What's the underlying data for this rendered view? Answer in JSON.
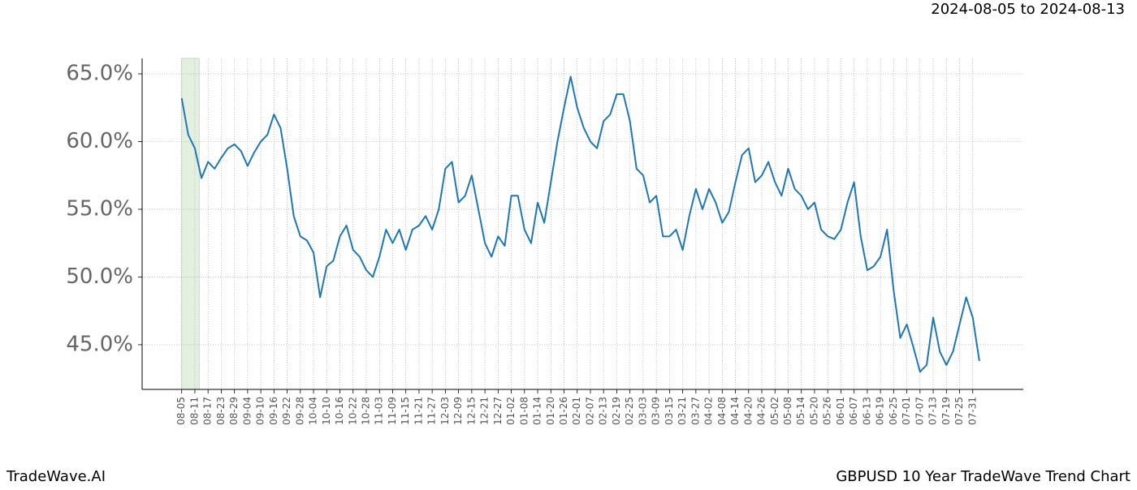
{
  "chart_data": {
    "type": "line",
    "subtitle": "2024-08-05 to 2024-08-13",
    "footer_left": "TradeWave.AI",
    "footer_right": "GBPUSD 10 Year TradeWave Trend Chart",
    "highlight": [
      "08-05",
      "08-13"
    ],
    "highlight_color": "#d8ead3",
    "grid": true,
    "xlim": [
      "07-18",
      "08-23"
    ],
    "ylim": [
      41.7,
      66.14
    ],
    "yticks": [
      {
        "value": 45,
        "label": "45.0%"
      },
      {
        "value": 50,
        "label": "50.0%"
      },
      {
        "value": 55,
        "label": "55.0%"
      },
      {
        "value": 60,
        "label": "60.0%"
      },
      {
        "value": 65,
        "label": "65.0%"
      }
    ],
    "xticks": [
      "08-05",
      "08-11",
      "08-17",
      "08-23",
      "08-29",
      "09-04",
      "09-10",
      "09-16",
      "09-22",
      "09-28",
      "10-04",
      "10-10",
      "10-16",
      "10-22",
      "10-28",
      "11-03",
      "11-09",
      "11-15",
      "11-21",
      "11-27",
      "12-03",
      "12-09",
      "12-15",
      "12-21",
      "12-27",
      "01-02",
      "01-08",
      "01-14",
      "01-20",
      "01-26",
      "02-01",
      "02-07",
      "02-13",
      "02-19",
      "02-25",
      "03-03",
      "03-09",
      "03-15",
      "03-21",
      "03-27",
      "04-02",
      "04-08",
      "04-14",
      "04-20",
      "04-26",
      "05-02",
      "05-08",
      "05-14",
      "05-20",
      "05-26",
      "06-01",
      "06-07",
      "06-13",
      "06-19",
      "06-25",
      "07-01",
      "07-07",
      "07-13",
      "07-19",
      "07-25",
      "07-31"
    ],
    "x": [
      "08-05",
      "08-08",
      "08-11",
      "08-14",
      "08-17",
      "08-20",
      "08-23",
      "08-26",
      "08-29",
      "09-01",
      "09-04",
      "09-07",
      "09-10",
      "09-13",
      "09-16",
      "09-19",
      "09-22",
      "09-25",
      "09-28",
      "10-01",
      "10-04",
      "10-07",
      "10-10",
      "10-13",
      "10-16",
      "10-19",
      "10-22",
      "10-25",
      "10-28",
      "10-31",
      "11-03",
      "11-06",
      "11-09",
      "11-12",
      "11-15",
      "11-18",
      "11-21",
      "11-24",
      "11-27",
      "11-30",
      "12-03",
      "12-06",
      "12-09",
      "12-12",
      "12-15",
      "12-18",
      "12-21",
      "12-24",
      "12-27",
      "12-30",
      "01-02",
      "01-05",
      "01-08",
      "01-11",
      "01-14",
      "01-17",
      "01-20",
      "01-23",
      "01-26",
      "01-29",
      "02-01",
      "02-04",
      "02-07",
      "02-10",
      "02-13",
      "02-16",
      "02-19",
      "02-22",
      "02-25",
      "02-28",
      "03-03",
      "03-06",
      "03-09",
      "03-12",
      "03-15",
      "03-18",
      "03-21",
      "03-24",
      "03-27",
      "03-30",
      "04-02",
      "04-05",
      "04-08",
      "04-11",
      "04-14",
      "04-17",
      "04-20",
      "04-23",
      "04-26",
      "04-29",
      "05-02",
      "05-05",
      "05-08",
      "05-11",
      "05-14",
      "05-17",
      "05-20",
      "05-23",
      "05-26",
      "05-29",
      "06-01",
      "06-04",
      "06-07",
      "06-10",
      "06-13",
      "06-16",
      "06-19",
      "06-22",
      "06-25",
      "06-28",
      "07-01",
      "07-04",
      "07-07",
      "07-10",
      "07-13",
      "07-16",
      "07-19",
      "07-22",
      "07-25",
      "07-28",
      "07-31",
      "08-03"
    ],
    "series": [
      {
        "color": "#1f77b4",
        "values": [
          63.2,
          60.5,
          59.5,
          57.3,
          58.5,
          58.0,
          58.8,
          59.5,
          59.8,
          59.3,
          58.2,
          59.2,
          60.0,
          60.5,
          62.0,
          61.0,
          58.0,
          54.5,
          53.0,
          52.7,
          51.8,
          48.5,
          50.8,
          51.2,
          53.0,
          53.8,
          52.0,
          51.5,
          50.5,
          50.0,
          51.5,
          53.5,
          52.5,
          53.5,
          52.0,
          53.5,
          53.8,
          54.5,
          53.5,
          55.0,
          58.0,
          58.5,
          55.5,
          56.0,
          57.5,
          55.0,
          52.5,
          51.5,
          53.0,
          52.3,
          56.0,
          56.0,
          53.5,
          52.5,
          55.5,
          54.0,
          57.0,
          60.0,
          62.5,
          64.8,
          62.5,
          61.0,
          60.0,
          59.5,
          61.5,
          62.0,
          63.5,
          63.5,
          61.5,
          58.0,
          57.5,
          55.5,
          56.0,
          53.0,
          53.0,
          53.5,
          52.0,
          54.5,
          56.5,
          55.0,
          56.5,
          55.5,
          54.0,
          54.8,
          57.0,
          59.0,
          59.5,
          57.0,
          57.5,
          58.5,
          57.0,
          56.0,
          58.0,
          56.5,
          56.0,
          55.0,
          55.5,
          53.5,
          53.0,
          52.8,
          53.5,
          55.5,
          57.0,
          53.0,
          50.5,
          50.8,
          51.5,
          53.5,
          49.0,
          45.5,
          46.5,
          44.8,
          43.0,
          43.5,
          47.0,
          44.5,
          43.5,
          44.5,
          46.5,
          48.5,
          47.0,
          43.8
        ]
      }
    ]
  }
}
